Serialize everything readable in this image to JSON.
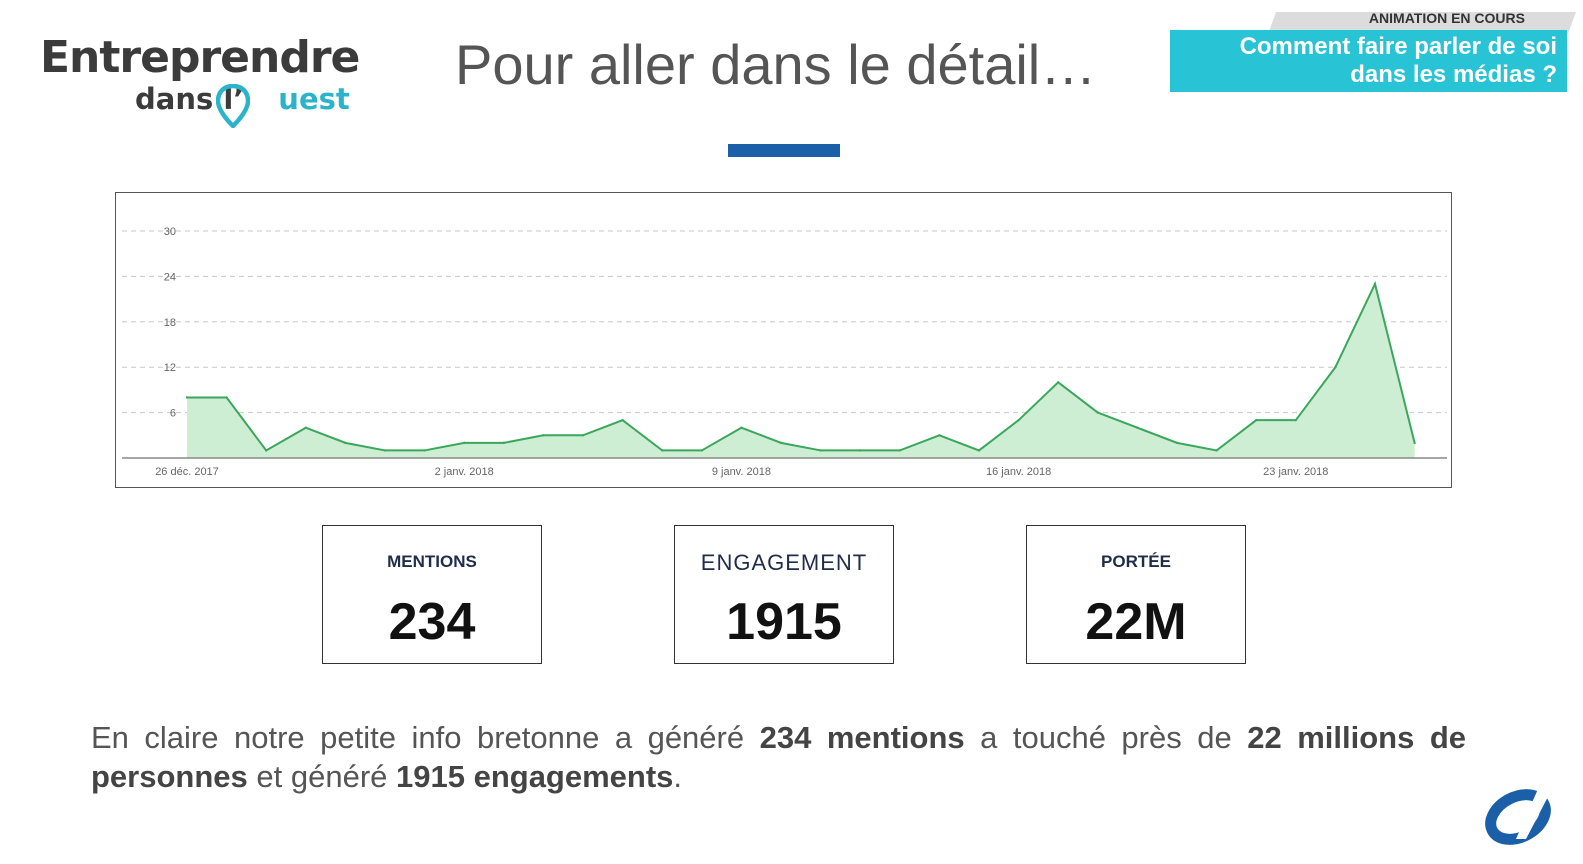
{
  "logo": {
    "line1": "Entreprendre",
    "line2_a": "dans l’",
    "line2_b": "uest"
  },
  "title": "Pour aller dans le détail…",
  "banner": {
    "label": "ANIMATION EN COURS",
    "line1": "Comment faire parler de soi",
    "line2": "dans les médias ?"
  },
  "colors": {
    "accent_blue": "#1a5fa8",
    "banner_cyan": "#28c3d4",
    "line_green": "#3aa75b",
    "fill_green": "#cdeed3"
  },
  "chart_data": {
    "type": "area",
    "title": "",
    "xlabel": "",
    "ylabel": "",
    "ylim": [
      0,
      30
    ],
    "yticks": [
      6,
      12,
      18,
      24,
      30
    ],
    "grid": true,
    "x_start": "26 déc. 2017",
    "xtick_labels": [
      {
        "label": "26 déc. 2017",
        "day_index": 0
      },
      {
        "label": "2 janv. 2018",
        "day_index": 7
      },
      {
        "label": "9 janv. 2018",
        "day_index": 14
      },
      {
        "label": "16 janv. 2018",
        "day_index": 21
      },
      {
        "label": "23 janv. 2018",
        "day_index": 28
      }
    ],
    "series": [
      {
        "values": [
          8,
          8,
          1,
          4,
          2,
          1,
          1,
          2,
          2,
          3,
          3,
          5,
          1,
          1,
          4,
          2,
          1,
          1,
          1,
          3,
          1,
          5,
          10,
          6,
          4,
          2,
          1,
          5,
          5,
          12,
          23,
          2
        ]
      }
    ]
  },
  "kpis": [
    {
      "label": "MENTIONS",
      "value": "234"
    },
    {
      "label": "ENGAGEMENT",
      "value": "1915"
    },
    {
      "label": "PORTÉE",
      "value": "22M"
    }
  ],
  "paragraph": {
    "t1": "En claire notre petite info bretonne a généré ",
    "b1": "234 mentions",
    "t2": "  a touché près de ",
    "b2": "22 millions de personnes",
    "t3": " et généré ",
    "b3": "1915 engagements",
    "t4": "."
  }
}
